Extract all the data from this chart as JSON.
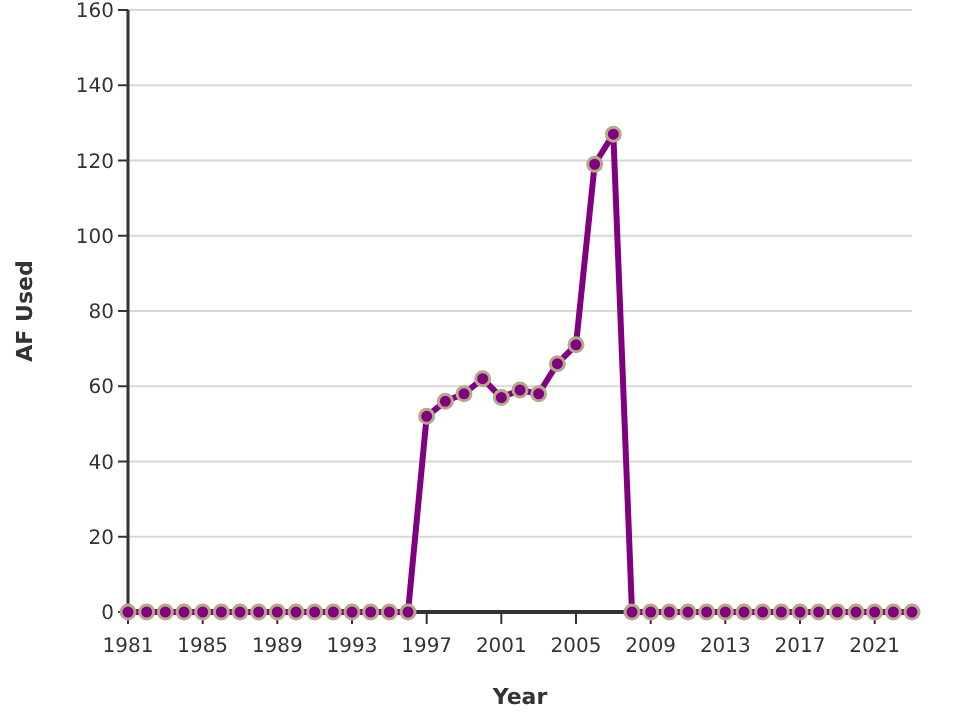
{
  "chart_data": {
    "type": "line",
    "xlabel": "Year",
    "ylabel": "AF Used",
    "x": [
      1981,
      1982,
      1983,
      1984,
      1985,
      1986,
      1987,
      1988,
      1989,
      1990,
      1991,
      1992,
      1993,
      1994,
      1995,
      1996,
      1997,
      1998,
      1999,
      2000,
      2001,
      2002,
      2003,
      2004,
      2005,
      2006,
      2007,
      2008,
      2009,
      2010,
      2011,
      2012,
      2013,
      2014,
      2015,
      2016,
      2017,
      2018,
      2019,
      2020,
      2021,
      2022,
      2023
    ],
    "series": [
      {
        "color": "#800080",
        "values": [
          0,
          0,
          0,
          0,
          0,
          0,
          0,
          0,
          0,
          0,
          0,
          0,
          0,
          0,
          0,
          0,
          52,
          56,
          58,
          62,
          57,
          59,
          58,
          66,
          71,
          119,
          127,
          0,
          0,
          0,
          0,
          0,
          0,
          0,
          0,
          0,
          0,
          0,
          0,
          0,
          0,
          0,
          0
        ]
      }
    ],
    "xlim": [
      1981,
      2023
    ],
    "xticks": [
      1981,
      1985,
      1989,
      1993,
      1997,
      2001,
      2005,
      2009,
      2013,
      2017,
      2021
    ],
    "ylim": [
      0,
      160
    ],
    "yticks": [
      0,
      20,
      40,
      60,
      80,
      100,
      120,
      140,
      160
    ],
    "grid": "y",
    "marker": "circle",
    "line_style": "solid"
  }
}
